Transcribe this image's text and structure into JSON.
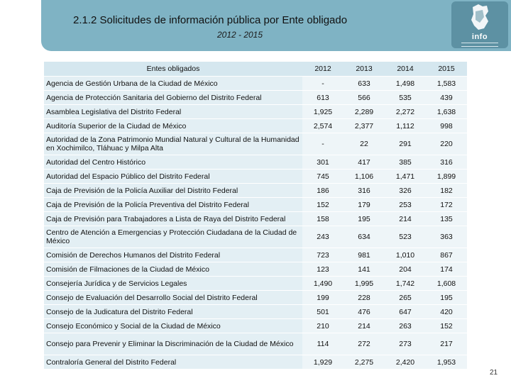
{
  "header": {
    "title": "2.1.2 Solicitudes de información pública por Ente obligado",
    "subtitle": "2012 - 2015",
    "logo_text": "info",
    "logo_icon": "city-map-icon"
  },
  "table": {
    "columns": [
      "Entes obligados",
      "2012",
      "2013",
      "2014",
      "2015"
    ],
    "rows": [
      [
        "Agencia de Gestión Urbana de la Ciudad de México",
        "-",
        "633",
        "1,498",
        "1,583"
      ],
      [
        "Agencia de Protección Sanitaria del Gobierno del Distrito Federal",
        "613",
        "566",
        "535",
        "439"
      ],
      [
        "Asamblea Legislativa del Distrito Federal",
        "1,925",
        "2,289",
        "2,272",
        "1,638"
      ],
      [
        "Auditoría Superior de la Ciudad de México",
        "2,574",
        "2,377",
        "1,112",
        "998"
      ],
      [
        "Autoridad de la Zona Patrimonio Mundial Natural y Cultural de la Humanidad en Xochimilco, Tláhuac y Milpa Alta",
        "-",
        "22",
        "291",
        "220"
      ],
      [
        "Autoridad del Centro Histórico",
        "301",
        "417",
        "385",
        "316"
      ],
      [
        "Autoridad del Espacio Público del Distrito Federal",
        "745",
        "1,106",
        "1,471",
        "1,899"
      ],
      [
        "Caja de Previsión de la Policía Auxiliar del Distrito Federal",
        "186",
        "316",
        "326",
        "182"
      ],
      [
        "Caja de Previsión de la Policía Preventiva del Distrito Federal",
        "152",
        "179",
        "253",
        "172"
      ],
      [
        "Caja de Previsión para Trabajadores a Lista de Raya del Distrito Federal",
        "158",
        "195",
        "214",
        "135"
      ],
      [
        "Centro de Atención a Emergencias y Protección Ciudadana de la Ciudad de México",
        "243",
        "634",
        "523",
        "363"
      ],
      [
        "Comisión de Derechos Humanos del Distrito Federal",
        "723",
        "981",
        "1,010",
        "867"
      ],
      [
        "Comisión de Filmaciones de la Ciudad de México",
        "123",
        "141",
        "204",
        "174"
      ],
      [
        "Consejería Jurídica y de Servicios Legales",
        "1,490",
        "1,995",
        "1,742",
        "1,608"
      ],
      [
        "Consejo de Evaluación del Desarrollo Social del Distrito Federal",
        "199",
        "228",
        "265",
        "195"
      ],
      [
        "Consejo de la Judicatura del Distrito Federal",
        "501",
        "476",
        "647",
        "420"
      ],
      [
        "Consejo Económico y Social de la Ciudad de México",
        "210",
        "214",
        "263",
        "152"
      ],
      [
        "Consejo para Prevenir y Eliminar la Discriminación de la Ciudad de México",
        "114",
        "272",
        "273",
        "217"
      ],
      [
        "Contraloría General del Distrito Federal",
        "1,929",
        "2,275",
        "2,420",
        "1,953"
      ]
    ],
    "tall_rows": [
      4,
      10,
      17
    ]
  },
  "page_number": "21"
}
